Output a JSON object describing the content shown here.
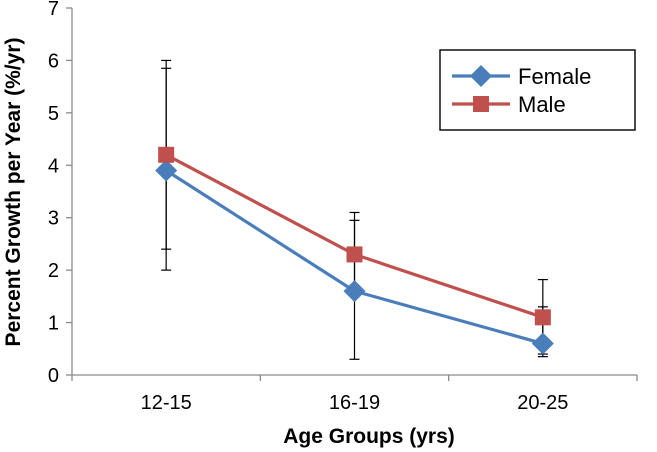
{
  "chart_data": {
    "type": "line",
    "title": "",
    "xlabel": "Age Groups (yrs)",
    "ylabel": "Percent Growth per Year (%/yr)",
    "categories": [
      "12-15",
      "16-19",
      "20-25"
    ],
    "ylim": [
      0,
      7
    ],
    "yticks": [
      "0",
      "1",
      "2",
      "3",
      "4",
      "5",
      "6",
      "7"
    ],
    "grid": false,
    "legend_position": "top-right",
    "series": [
      {
        "name": "Female",
        "color": "#4a7ebb",
        "marker": "diamond",
        "values": [
          3.9,
          1.6,
          0.6
        ],
        "err_low": [
          2.0,
          0.3,
          0.35
        ],
        "err_high": [
          5.85,
          2.95,
          1.3
        ]
      },
      {
        "name": "Male",
        "color": "#c0504d",
        "marker": "square",
        "values": [
          4.2,
          2.3,
          1.1
        ],
        "err_low": [
          2.4,
          1.6,
          0.4
        ],
        "err_high": [
          6.0,
          3.1,
          1.82
        ]
      }
    ]
  }
}
